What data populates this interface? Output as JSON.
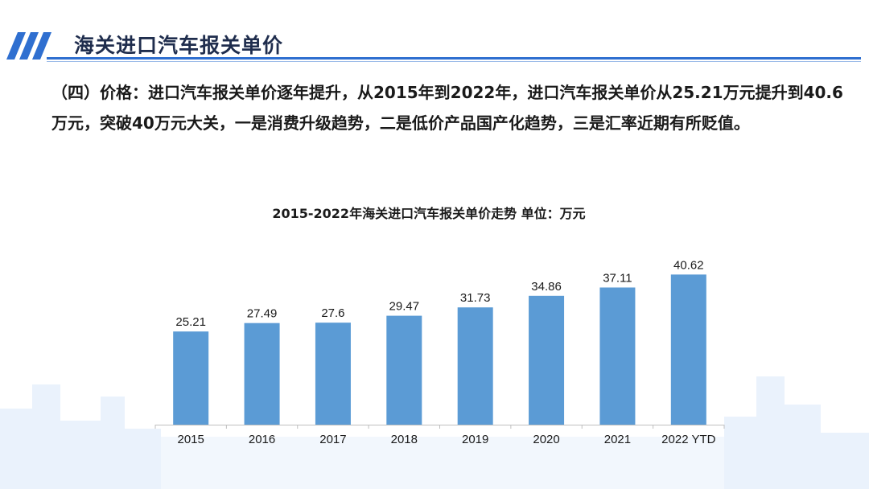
{
  "header": {
    "title": "海关进口汽车报关单价",
    "accent_color": "#2f6fd0"
  },
  "intro": {
    "text": "（四）价格：进口汽车报关单价逐年提升，从2015年到2022年，进口汽车报关单价从25.21万元提升到40.6万元，突破40万元大关，一是消费升级趋势，二是低价产品国产化趋势，三是汇率近期有所贬值。"
  },
  "chart_data": {
    "type": "bar",
    "title": "2015-2022年海关进口汽车报关单价走势 单位：万元",
    "categories": [
      "2015",
      "2016",
      "2017",
      "2018",
      "2019",
      "2020",
      "2021",
      "2022 YTD"
    ],
    "values": [
      25.21,
      27.49,
      27.6,
      29.47,
      31.73,
      34.86,
      37.11,
      40.62
    ],
    "data_labels": [
      "25.21",
      "27.49",
      "27.6",
      "29.47",
      "31.73",
      "34.86",
      "37.11",
      "40.62"
    ],
    "bar_color": "#5b9bd5",
    "ylim": [
      0,
      42
    ],
    "grid": false,
    "legend": "none"
  }
}
